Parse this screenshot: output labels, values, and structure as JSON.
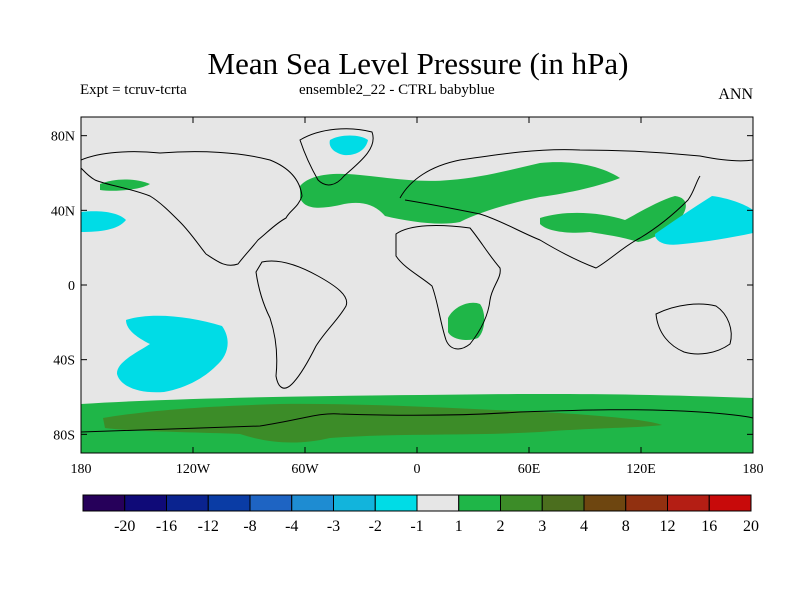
{
  "title": "Mean Sea Level Pressure (in hPa)",
  "subtitle_left": "Expt = tcruv-tcrta",
  "subtitle_center": "ensemble2_22 - CTRL babyblue",
  "subtitle_right": "ANN",
  "map": {
    "projection": "cylindrical equidistant",
    "lon_range": [
      -180,
      180
    ],
    "lat_range": [
      -90,
      90
    ],
    "x_ticks": [
      "180",
      "120W",
      "60W",
      "0",
      "60E",
      "120E",
      "180"
    ],
    "y_ticks": [
      "80N",
      "40N",
      "0",
      "40S",
      "80S"
    ],
    "background_color": "#e6e6e6",
    "coastline_color": "#000000"
  },
  "colorbar": {
    "labels": [
      "-20",
      "-16",
      "-12",
      "-8",
      "-4",
      "-3",
      "-2",
      "-1",
      "1",
      "2",
      "3",
      "4",
      "8",
      "12",
      "16",
      "20"
    ],
    "colors": [
      "#26005a",
      "#0f0a78",
      "#0a238f",
      "#0a3ca5",
      "#1e64c3",
      "#1e8cd2",
      "#12b4dc",
      "#00dce6",
      "#e6e6e6",
      "#1fb648",
      "#3c8c28",
      "#4b6e1e",
      "#6e4610",
      "#913010",
      "#b41e14",
      "#c80a0a"
    ]
  }
}
